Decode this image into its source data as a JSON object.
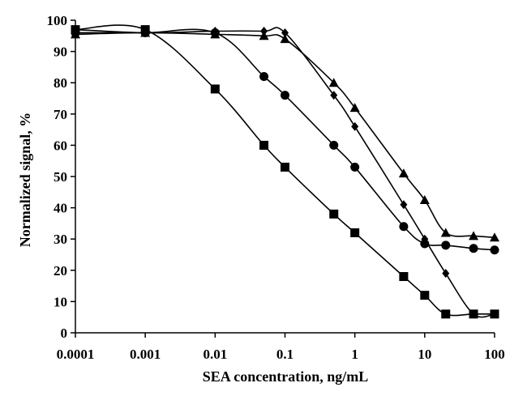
{
  "chart_data": {
    "type": "line",
    "title": "",
    "xlabel": "SEA concentration, ng/mL",
    "ylabel": "Normalized signal, %",
    "xscale": "log",
    "xlim": [
      0.0001,
      100
    ],
    "ylim": [
      0,
      100
    ],
    "x_tick_labels": [
      "0.0001",
      "0.001",
      "0.01",
      "0.1",
      "1",
      "10",
      "100"
    ],
    "x_tick_values": [
      0.0001,
      0.001,
      0.01,
      0.1,
      1,
      10,
      100
    ],
    "y_tick_labels": [
      "0",
      "10",
      "20",
      "30",
      "40",
      "50",
      "60",
      "70",
      "80",
      "90",
      "100"
    ],
    "y_tick_values": [
      0,
      10,
      20,
      30,
      40,
      50,
      60,
      70,
      80,
      90,
      100
    ],
    "grid": false,
    "legend": "none",
    "series": [
      {
        "marker": "square",
        "x": [
          0.0001,
          0.001,
          0.01,
          0.05,
          0.1,
          0.5,
          1,
          5,
          10,
          20,
          50,
          100
        ],
        "y": [
          97,
          97,
          78,
          60,
          53,
          38,
          32,
          18,
          12,
          6,
          6,
          6
        ]
      },
      {
        "marker": "circle",
        "x": [
          0.0001,
          0.001,
          0.01,
          0.05,
          0.1,
          0.5,
          1,
          5,
          10,
          20,
          50,
          100
        ],
        "y": [
          96,
          96,
          96,
          82,
          76,
          60,
          53,
          34,
          28.5,
          28,
          27,
          26.5
        ]
      },
      {
        "marker": "diamond",
        "x": [
          0.0001,
          0.001,
          0.01,
          0.05,
          0.1,
          0.5,
          1,
          5,
          10,
          20,
          50,
          100
        ],
        "y": [
          97,
          96,
          96.5,
          96.5,
          96,
          76,
          66,
          41,
          30,
          19,
          6,
          6
        ]
      },
      {
        "marker": "triangle",
        "x": [
          0.0001,
          0.001,
          0.01,
          0.05,
          0.1,
          0.5,
          1,
          5,
          10,
          20,
          50,
          100
        ],
        "y": [
          95.5,
          96,
          95.5,
          95,
          94,
          80,
          72,
          51,
          42.5,
          32,
          31,
          30.5
        ]
      }
    ]
  }
}
